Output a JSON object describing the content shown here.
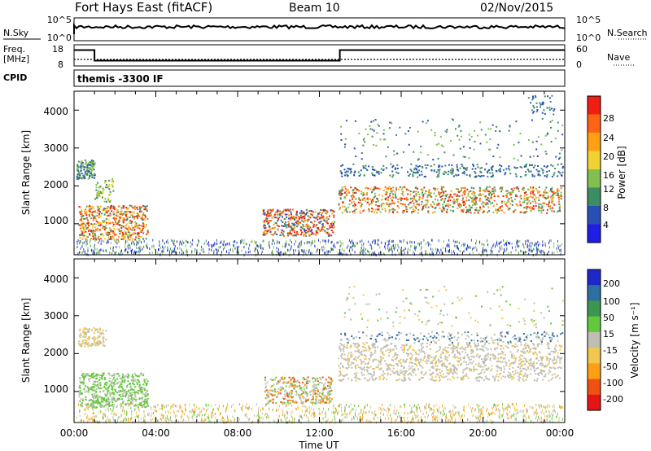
{
  "header": {
    "station": "Fort Hays East (fitACF)",
    "beam": "Beam 10",
    "date": "02/Nov/2015"
  },
  "chart_data": [
    {
      "type": "line",
      "panel": "noise",
      "left_label": "N.Sky",
      "right_label": "N.Search",
      "left_ticks": [
        "10^5",
        "10^0"
      ],
      "right_ticks": [
        "10^5",
        "10^0"
      ]
    },
    {
      "type": "line",
      "panel": "frequency",
      "left_label_line1": "Freq.",
      "left_label_line2": "[MHz]",
      "right_label": "Nave",
      "left_ticks": [
        "18",
        "8"
      ],
      "right_ticks": [
        "60",
        "0"
      ],
      "freq_steps": [
        {
          "from_hour": 0,
          "to_hour": 1,
          "value": 15.5
        },
        {
          "from_hour": 1,
          "to_hour": 13,
          "value": 10.5
        },
        {
          "from_hour": 13,
          "to_hour": 24,
          "value": 15.5
        }
      ]
    },
    {
      "type": "table",
      "panel": "cpid",
      "label": "CPID",
      "value": "themis -3300 IF"
    },
    {
      "type": "heatmap",
      "panel": "power",
      "ylabel": "Slant Range [km]",
      "ylim": [
        180,
        4500
      ],
      "y_ticks": [
        "4000",
        "3000",
        "2000",
        "1000"
      ],
      "colorbar_label": "Power [dB]",
      "colorbar_ticks": [
        "28",
        "24",
        "20",
        "16",
        "12",
        "8",
        "4"
      ],
      "colors": [
        "#1e1ee6",
        "#2850b4",
        "#3c8c64",
        "#82be50",
        "#f0d232",
        "#ffa014",
        "#ff6414",
        "#f01e14"
      ]
    },
    {
      "type": "heatmap",
      "panel": "velocity",
      "ylabel": "Slant Range [km]",
      "ylim": [
        180,
        4500
      ],
      "y_ticks": [
        "4000",
        "3000",
        "2000",
        "1000"
      ],
      "colorbar_label": "Velocity [m s⁻¹]",
      "colorbar_ticks": [
        "200",
        "100",
        "50",
        "15",
        "-15",
        "-50",
        "-100",
        "-200"
      ],
      "colors": [
        "#1e28c8",
        "#2e6ea0",
        "#3c9650",
        "#64c83c",
        "#bebeb4",
        "#f0c850",
        "#ffa014",
        "#f05014",
        "#e61414"
      ]
    }
  ],
  "x_axis": {
    "ticks": [
      "00:00",
      "04:00",
      "08:00",
      "12:00",
      "16:00",
      "20:00",
      "00:00"
    ],
    "xlabel": "Time UT"
  }
}
